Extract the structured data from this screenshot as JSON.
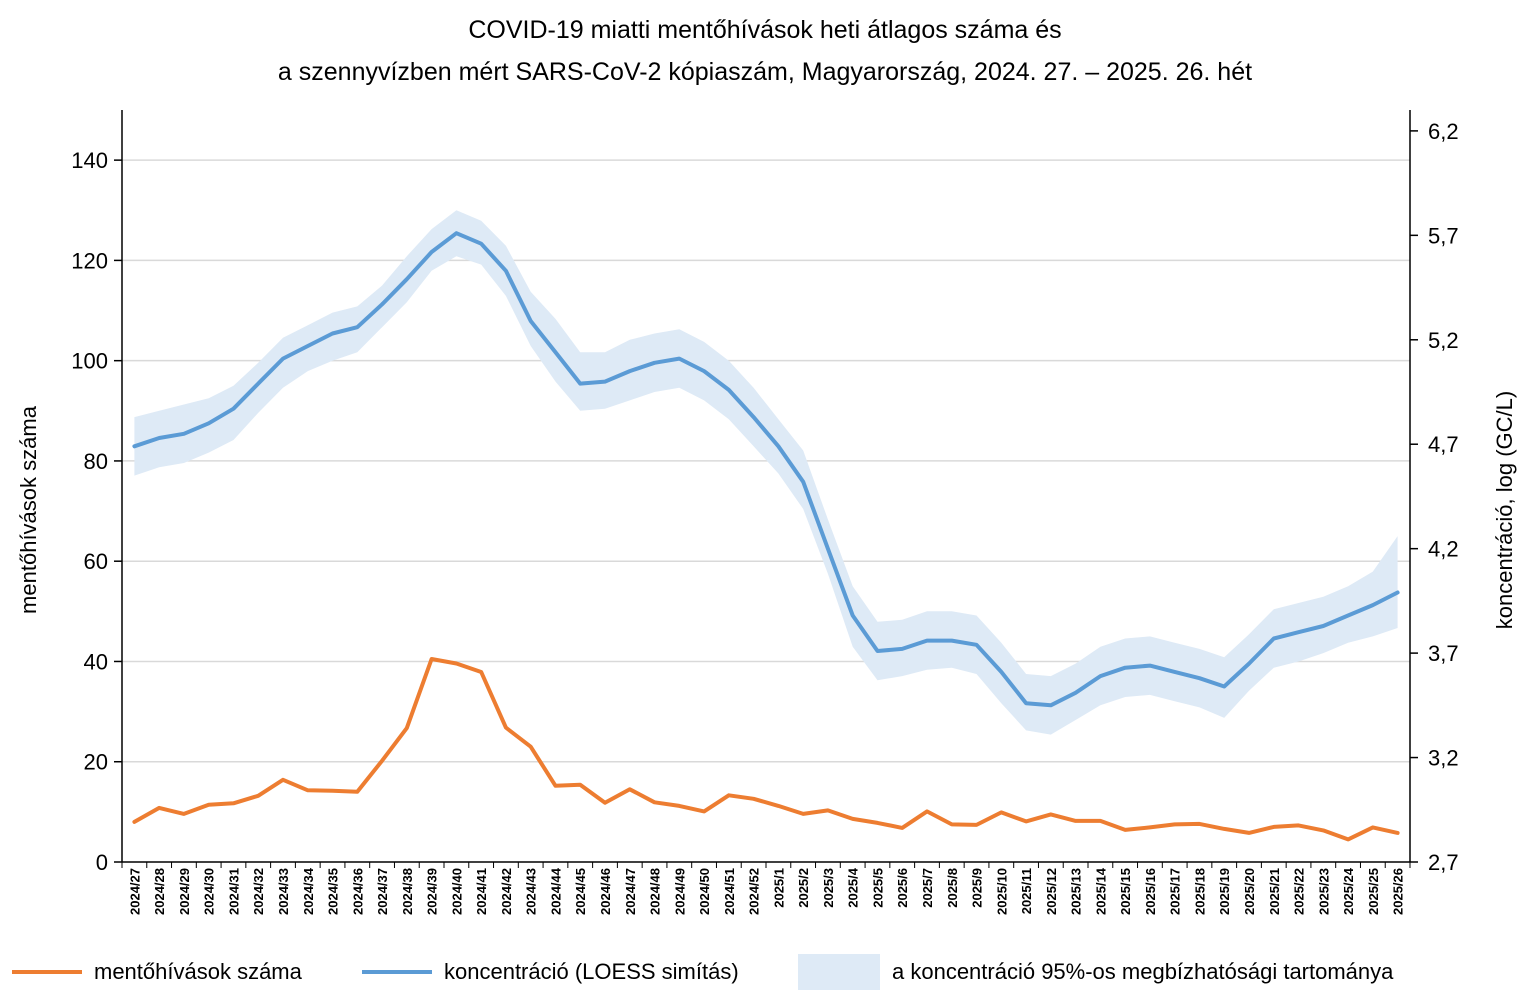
{
  "chart_data": {
    "type": "line",
    "title": [
      "COVID-19 miatti mentőhívások heti átlagos száma és",
      "a szennyvízben mért SARS-CoV-2 kópiaszám, Magyarország, 2024. 27. – 2025. 26. hét"
    ],
    "ylabel": "mentőhívások száma",
    "y2label": "koncentráció, log (GC/L)",
    "ylim": [
      0,
      150
    ],
    "yticks": [
      0,
      20,
      40,
      60,
      80,
      100,
      120,
      140
    ],
    "y2lim": [
      2.7,
      6.3
    ],
    "y2ticks": [
      "2,7",
      "3,2",
      "3,7",
      "4,2",
      "4,7",
      "5,2",
      "5,7",
      "6,2"
    ],
    "y2tick_values": [
      2.7,
      3.2,
      3.7,
      4.2,
      4.7,
      5.2,
      5.7,
      6.2
    ],
    "grid": true,
    "legend_position": "bottom",
    "categories": [
      "2024/27",
      "2024/28",
      "2024/29",
      "2024/30",
      "2024/31",
      "2024/32",
      "2024/33",
      "2024/34",
      "2024/35",
      "2024/36",
      "2024/37",
      "2024/38",
      "2024/39",
      "2024/40",
      "2024/41",
      "2024/42",
      "2024/43",
      "2024/44",
      "2024/45",
      "2024/46",
      "2024/47",
      "2024/48",
      "2024/49",
      "2024/50",
      "2024/51",
      "2024/52",
      "2025/1",
      "2025/2",
      "2025/3",
      "2025/4",
      "2025/5",
      "2025/6",
      "2025/7",
      "2025/8",
      "2025/9",
      "2025/10",
      "2025/11",
      "2025/12",
      "2025/13",
      "2025/14",
      "2025/15",
      "2025/16",
      "2025/17",
      "2025/18",
      "2025/19",
      "2025/20",
      "2025/21",
      "2025/22",
      "2025/23",
      "2025/24",
      "2025/25",
      "2025/26"
    ],
    "series": [
      {
        "name": "mentőhívások száma",
        "axis": "left",
        "color": "#ED7D31",
        "values": [
          8,
          10.8,
          9.6,
          11.4,
          11.7,
          13.2,
          16.4,
          14.3,
          14.2,
          14.0,
          20.2,
          26.7,
          40.5,
          39.6,
          37.9,
          26.8,
          23.0,
          15.2,
          15.4,
          11.8,
          14.5,
          11.9,
          11.2,
          10.1,
          13.3,
          12.6,
          11.2,
          9.6,
          10.3,
          8.6,
          7.8,
          6.8,
          10.1,
          7.5,
          7.4,
          9.9,
          8.1,
          9.5,
          8.2,
          8.2,
          6.4,
          6.9,
          7.5,
          7.6,
          6.6,
          5.8,
          7.0,
          7.3,
          6.3,
          4.5,
          6.9,
          5.8
        ]
      },
      {
        "name": "koncentráció (LOESS simítás)",
        "axis": "right",
        "color": "#5B9BD5",
        "values": [
          4.69,
          4.73,
          4.75,
          4.8,
          4.87,
          4.99,
          5.11,
          5.17,
          5.23,
          5.26,
          5.37,
          5.49,
          5.62,
          5.71,
          5.66,
          5.53,
          5.29,
          5.14,
          4.99,
          5.0,
          5.05,
          5.09,
          5.11,
          5.05,
          4.96,
          4.83,
          4.69,
          4.52,
          4.2,
          3.88,
          3.71,
          3.72,
          3.76,
          3.76,
          3.74,
          3.61,
          3.46,
          3.45,
          3.51,
          3.59,
          3.63,
          3.64,
          3.61,
          3.58,
          3.54,
          3.65,
          3.77,
          3.8,
          3.83,
          3.88,
          3.93,
          3.99
        ]
      }
    ],
    "band": {
      "name": "a koncentráció 95%-os megbízhatósági tartománya",
      "axis": "right",
      "color": "#DEEAF6",
      "upper": [
        4.83,
        4.86,
        4.89,
        4.92,
        4.98,
        5.09,
        5.21,
        5.27,
        5.33,
        5.36,
        5.46,
        5.6,
        5.73,
        5.82,
        5.77,
        5.65,
        5.43,
        5.3,
        5.14,
        5.14,
        5.2,
        5.23,
        5.25,
        5.19,
        5.1,
        4.97,
        4.82,
        4.67,
        4.34,
        4.02,
        3.85,
        3.86,
        3.9,
        3.9,
        3.88,
        3.75,
        3.6,
        3.59,
        3.65,
        3.73,
        3.77,
        3.78,
        3.75,
        3.72,
        3.68,
        3.79,
        3.91,
        3.94,
        3.97,
        4.02,
        4.09,
        4.26
      ],
      "lower": [
        4.55,
        4.59,
        4.61,
        4.66,
        4.72,
        4.85,
        4.97,
        5.05,
        5.1,
        5.14,
        5.26,
        5.38,
        5.53,
        5.6,
        5.56,
        5.41,
        5.17,
        5.0,
        4.86,
        4.87,
        4.91,
        4.95,
        4.97,
        4.91,
        4.82,
        4.69,
        4.56,
        4.39,
        4.08,
        3.73,
        3.57,
        3.59,
        3.62,
        3.63,
        3.6,
        3.46,
        3.33,
        3.31,
        3.38,
        3.45,
        3.49,
        3.5,
        3.47,
        3.44,
        3.39,
        3.52,
        3.63,
        3.66,
        3.7,
        3.75,
        3.78,
        3.82
      ]
    },
    "legend": {
      "calls": "mentőhívások száma",
      "conc": "koncentráció (LOESS simítás)",
      "band": "a koncentráció 95%-os megbízhatósági tartománya"
    }
  }
}
